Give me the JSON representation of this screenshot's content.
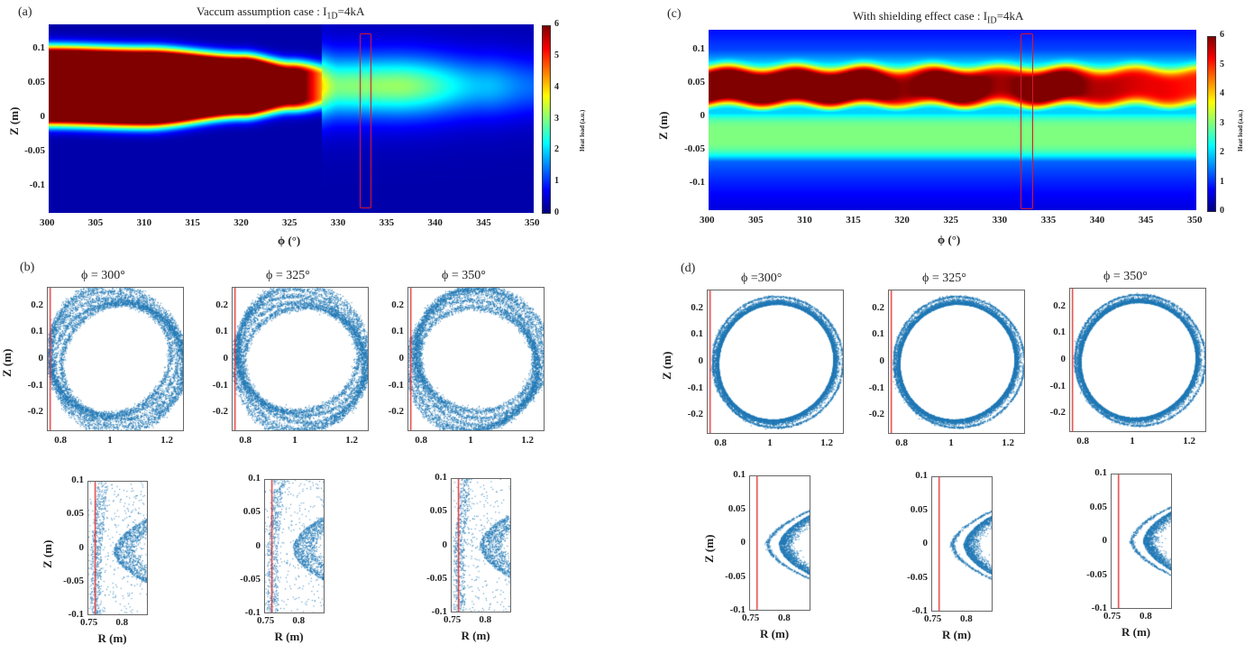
{
  "figure": {
    "panels": {
      "a": {
        "label": "(a)",
        "title_prefix": "Vaccum assumption case : I",
        "title_sub": "1D",
        "title_suffix": "=4kA"
      },
      "b": {
        "label": "(b)"
      },
      "c": {
        "label": "(c)",
        "title_prefix": "With shielding effect case : I",
        "title_sub": "ID",
        "title_suffix": "=4kA"
      },
      "d": {
        "label": "(d)"
      }
    },
    "heatmap_axes": {
      "xlabel": "ϕ (°)",
      "ylabel": "Z (m)",
      "xticks": [
        "300",
        "305",
        "310",
        "315",
        "320",
        "325",
        "330",
        "335",
        "340",
        "345",
        "350"
      ],
      "yticks": [
        "0.1",
        "0.05",
        "0",
        "-0.05",
        "-0.1"
      ],
      "colorbar_label": "Heat load (a.u.)",
      "colorbar_ticks": [
        "6",
        "5",
        "4",
        "3",
        "2",
        "1",
        "0"
      ]
    },
    "poincare_axes": {
      "ylabel": "Z (m)",
      "xticks": [
        "0.8",
        "1",
        "1.2"
      ],
      "yticks": [
        "0.2",
        "0.1",
        "0",
        "-0.1",
        "-0.2"
      ]
    },
    "zoom_axes": {
      "ylabel": "Z (m)",
      "xlabel": "R (m)",
      "xticks": [
        "0.75",
        "0.8"
      ],
      "yticks": [
        "0.1",
        "0.05",
        "0",
        "-0.05",
        "-0.1"
      ]
    },
    "b_titles": [
      "ϕ = 300°",
      "ϕ = 325°",
      "ϕ = 350°"
    ],
    "d_titles": [
      "ϕ =300°",
      "ϕ = 325°",
      "ϕ = 350°"
    ]
  },
  "chart_data": [
    {
      "id": "a",
      "type": "heatmap",
      "title": "Vaccum assumption case : I1D=4kA",
      "xlabel": "ϕ (°)",
      "ylabel": "Z (m)",
      "xlim": [
        300,
        350
      ],
      "ylim": [
        -0.14,
        0.135
      ],
      "clim": [
        0,
        6
      ],
      "colormap": "jet",
      "colorbar_label": "Heat load (a.u.)",
      "highlight_phi_range": [
        332.3,
        333.0
      ],
      "band_center_z": 0.045,
      "features": [
        {
          "phi": 300,
          "z_low": 0.003,
          "z_high": 0.088,
          "peak": 6
        },
        {
          "phi": 310,
          "z_low": 0.0,
          "z_high": 0.085,
          "peak": 6
        },
        {
          "phi": 320,
          "z_low": 0.015,
          "z_high": 0.075,
          "peak": 6
        },
        {
          "phi": 325,
          "z_low": 0.025,
          "z_high": 0.065,
          "peak": 4.8
        },
        {
          "phi": 330,
          "z_low": 0.03,
          "z_high": 0.06,
          "peak": 2.2
        },
        {
          "phi": 336,
          "z_low": 0.03,
          "z_high": 0.06,
          "peak": 2.3
        },
        {
          "phi": 345,
          "z_low": 0.03,
          "z_high": 0.06,
          "peak": 1.3
        },
        {
          "phi": 350,
          "z_low": 0.03,
          "z_high": 0.06,
          "peak": 0.9
        }
      ]
    },
    {
      "id": "c",
      "type": "heatmap",
      "title": "With shielding effect case : IID=4kA",
      "xlabel": "ϕ (°)",
      "ylabel": "Z (m)",
      "xlim": [
        300,
        350
      ],
      "ylim": [
        -0.14,
        0.13
      ],
      "clim": [
        0,
        6
      ],
      "colormap": "jet",
      "colorbar_label": "Heat load (a.u.)",
      "highlight_phi_range": [
        332.3,
        333.0
      ],
      "band_center_z": 0.045,
      "features": [
        {
          "phi": 300,
          "peak": 6
        },
        {
          "phi": 310,
          "peak": 6
        },
        {
          "phi": 316,
          "peak": 6
        },
        {
          "phi": 320,
          "peak": 4.9
        },
        {
          "phi": 325,
          "peak": 6
        },
        {
          "phi": 330,
          "peak": 4.8
        },
        {
          "phi": 335,
          "peak": 5.8
        },
        {
          "phi": 340,
          "peak": 4.7
        },
        {
          "phi": 346,
          "peak": 4.4
        },
        {
          "phi": 350,
          "peak": 4.2
        }
      ],
      "lower_plateau_z": [
        -0.06,
        0.0
      ],
      "lower_plateau_value": 2.7
    },
    {
      "id": "b",
      "type": "scatter",
      "description": "Poincare plots, vacuum case",
      "phi_deg": [
        300,
        325,
        350
      ],
      "xlim": [
        0.745,
        1.26
      ],
      "ylim": [
        -0.27,
        0.27
      ],
      "center": [
        1.0,
        0.0
      ],
      "minor_radius": 0.22,
      "stochastic_layer_width": 0.06,
      "limiter_R": 0.755
    },
    {
      "id": "d",
      "type": "scatter",
      "description": "Poincare plots, shielding case",
      "phi_deg": [
        300,
        325,
        350
      ],
      "xlim": [
        0.745,
        1.26
      ],
      "ylim": [
        -0.27,
        0.27
      ],
      "center": [
        1.0,
        0.0
      ],
      "minor_radius": 0.22,
      "stochastic_layer_width": 0.025,
      "limiter_R": 0.755
    },
    {
      "id": "b-zoom",
      "type": "scatter",
      "description": "Edge zoom, vacuum case",
      "xlim": [
        0.745,
        0.83
      ],
      "ylim": [
        -0.1,
        0.1
      ],
      "limiter_R": 0.755
    },
    {
      "id": "d-zoom",
      "type": "scatter",
      "description": "Edge zoom, shielding case",
      "xlim": [
        0.745,
        0.83
      ],
      "ylim": [
        -0.1,
        0.1
      ],
      "limiter_R": 0.755
    }
  ],
  "colors": {
    "scatter": "#1f77b4",
    "limiter": "#e03030",
    "highlight_box": "#d8182a",
    "axis": "#666666"
  }
}
